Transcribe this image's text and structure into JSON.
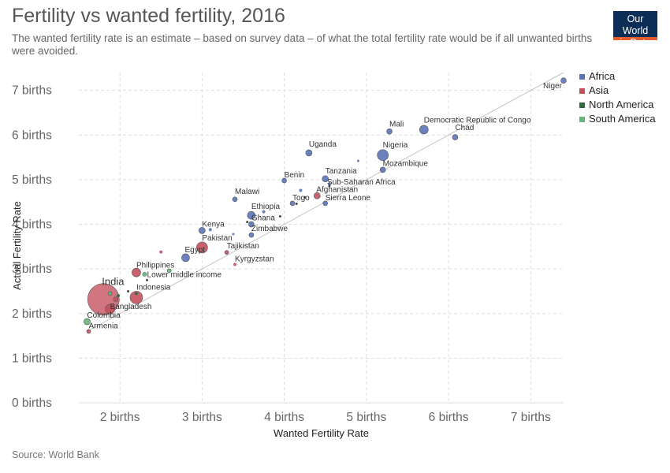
{
  "title": "Fertility vs wanted fertility, 2016",
  "subtitle": "The wanted fertility rate is an estimate – based on survey data – of what the total fertility rate would be if all unwanted births were avoided.",
  "logo": {
    "line1": "Our World",
    "line2": "in Data"
  },
  "source": "Source: World Bank",
  "colors": {
    "Africa": "#5b74b8",
    "Asia": "#c4505c",
    "North America": "#2f6b3d",
    "South America": "#61b878",
    "grid": "#dddddd",
    "diagonal": "#c4c4c4"
  },
  "chart_data": {
    "type": "scatter",
    "xlabel": "Wanted Fertility Rate",
    "ylabel": "Actual Fertility Rate",
    "xlim": [
      1.5,
      7.4
    ],
    "ylim": [
      0,
      7.4
    ],
    "x_ticks": [
      {
        "v": 2,
        "label": "2 births"
      },
      {
        "v": 3,
        "label": "3 births"
      },
      {
        "v": 4,
        "label": "4 births"
      },
      {
        "v": 5,
        "label": "5 births"
      },
      {
        "v": 6,
        "label": "6 births"
      },
      {
        "v": 7,
        "label": "7 births"
      }
    ],
    "y_ticks": [
      {
        "v": 0,
        "label": "0 births"
      },
      {
        "v": 1,
        "label": "1 births"
      },
      {
        "v": 2,
        "label": "2 births"
      },
      {
        "v": 3,
        "label": "3 births"
      },
      {
        "v": 4,
        "label": "4 births"
      },
      {
        "v": 5,
        "label": "5 births"
      },
      {
        "v": 6,
        "label": "6 births"
      },
      {
        "v": 7,
        "label": "7 births"
      }
    ],
    "grid": true,
    "legend_position": "top-right",
    "legend": [
      "Africa",
      "Asia",
      "North America",
      "South America"
    ],
    "points": [
      {
        "label": "Niger",
        "x": 7.4,
        "y": 7.22,
        "group": "Africa",
        "r": 3.5
      },
      {
        "label": "Democratic Republic of Congo",
        "x": 5.7,
        "y": 6.12,
        "group": "Africa",
        "r": 5.5
      },
      {
        "label": "Chad",
        "x": 6.08,
        "y": 5.95,
        "group": "Africa",
        "r": 3.5
      },
      {
        "label": "Mali",
        "x": 5.28,
        "y": 6.08,
        "group": "Africa",
        "r": 3.5
      },
      {
        "label": "Nigeria",
        "x": 5.2,
        "y": 5.55,
        "group": "Africa",
        "r": 7
      },
      {
        "label": "Mozambique",
        "x": 5.2,
        "y": 5.22,
        "group": "Africa",
        "r": 3.5
      },
      {
        "label": "Uganda",
        "x": 4.3,
        "y": 5.6,
        "group": "Africa",
        "r": 4
      },
      {
        "label": "Benin",
        "x": 4.0,
        "y": 4.98,
        "group": "Africa",
        "r": 3
      },
      {
        "label": "Tanzania",
        "x": 4.5,
        "y": 5.02,
        "group": "Africa",
        "r": 4
      },
      {
        "label": "Sub-Saharan Africa",
        "x": 4.55,
        "y": 4.86,
        "group": null,
        "r": 1.5
      },
      {
        "label": "Afghanistan",
        "x": 4.4,
        "y": 4.64,
        "group": "Asia",
        "r": 4
      },
      {
        "label": "Togo",
        "x": 4.1,
        "y": 4.47,
        "group": "Africa",
        "r": 3
      },
      {
        "label": "Sierra Leone",
        "x": 4.5,
        "y": 4.47,
        "group": "Africa",
        "r": 3
      },
      {
        "label": "Malawi",
        "x": 3.4,
        "y": 4.56,
        "group": "Africa",
        "r": 3
      },
      {
        "label": "Ethiopia",
        "x": 3.6,
        "y": 4.2,
        "group": "Africa",
        "r": 5
      },
      {
        "label": "Ghana",
        "x": 3.6,
        "y": 4.0,
        "group": "Africa",
        "r": 3.5
      },
      {
        "label": "Zimbabwe",
        "x": 3.6,
        "y": 3.76,
        "group": "Africa",
        "r": 3
      },
      {
        "label": "Kenya",
        "x": 3.0,
        "y": 3.86,
        "group": "Africa",
        "r": 4
      },
      {
        "label": "Pakistan",
        "x": 3.0,
        "y": 3.48,
        "group": "Asia",
        "r": 7
      },
      {
        "label": "Egypt",
        "x": 2.8,
        "y": 3.25,
        "group": "Africa",
        "r": 5
      },
      {
        "label": "Tajikistan",
        "x": 3.3,
        "y": 3.37,
        "group": "Asia",
        "r": 2.5
      },
      {
        "label": "Kyrgyzstan",
        "x": 3.4,
        "y": 3.1,
        "group": "Asia",
        "r": 2
      },
      {
        "label": "Philippines",
        "x": 2.2,
        "y": 2.92,
        "group": "Asia",
        "r": 5.5
      },
      {
        "label": "Lower middle income",
        "x": 2.33,
        "y": 2.75,
        "group": null,
        "r": 1.5
      },
      {
        "label": "India",
        "x": 1.8,
        "y": 2.32,
        "group": "Asia",
        "r": 20
      },
      {
        "label": "Indonesia",
        "x": 2.2,
        "y": 2.36,
        "group": "Asia",
        "r": 8
      },
      {
        "label": "Bangladesh",
        "x": 1.88,
        "y": 2.1,
        "group": "Asia",
        "r": 6
      },
      {
        "label": "Colombia",
        "x": 1.6,
        "y": 1.82,
        "group": "South America",
        "r": 4
      },
      {
        "label": "Armenia",
        "x": 1.62,
        "y": 1.6,
        "group": "Asia",
        "r": 2.5
      }
    ],
    "extra_points": [
      {
        "x": 4.9,
        "y": 5.42,
        "group": "Africa",
        "r": 1.5
      },
      {
        "x": 4.55,
        "y": 4.91,
        "group": "Africa",
        "r": 2
      },
      {
        "x": 4.2,
        "y": 4.76,
        "group": "Africa",
        "r": 2
      },
      {
        "x": 4.25,
        "y": 4.6,
        "group": null,
        "r": 1.5
      },
      {
        "x": 4.15,
        "y": 4.46,
        "group": null,
        "r": 1.5
      },
      {
        "x": 3.95,
        "y": 4.18,
        "group": null,
        "r": 1.5
      },
      {
        "x": 3.75,
        "y": 4.28,
        "group": "Africa",
        "r": 2
      },
      {
        "x": 3.55,
        "y": 4.05,
        "group": null,
        "r": 1.5
      },
      {
        "x": 3.1,
        "y": 3.88,
        "group": "Africa",
        "r": 2
      },
      {
        "x": 3.38,
        "y": 3.78,
        "group": "Africa",
        "r": 1.5
      },
      {
        "x": 2.5,
        "y": 3.38,
        "group": "Asia",
        "r": 2
      },
      {
        "x": 2.6,
        "y": 2.96,
        "group": "South America",
        "r": 2.5
      },
      {
        "x": 2.3,
        "y": 2.88,
        "group": "South America",
        "r": 2.5
      },
      {
        "x": 2.1,
        "y": 2.5,
        "group": null,
        "r": 1.5
      },
      {
        "x": 2.2,
        "y": 2.45,
        "group": "North America",
        "r": 2
      },
      {
        "x": 1.98,
        "y": 2.4,
        "group": "North America",
        "r": 2
      },
      {
        "x": 1.88,
        "y": 2.45,
        "group": "South America",
        "r": 2.5
      },
      {
        "x": 1.95,
        "y": 2.32,
        "group": "Asia",
        "r": 3
      }
    ]
  }
}
